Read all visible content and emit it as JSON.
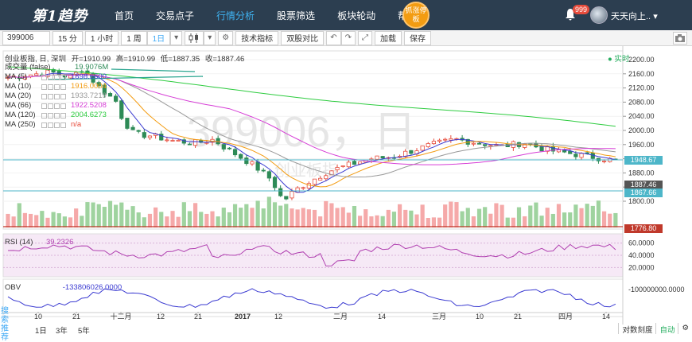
{
  "nav": {
    "logo": "第1趋势",
    "items": [
      "首页",
      "交易点子",
      "行情分析",
      "股票筛选",
      "板块轮动",
      "帮助"
    ],
    "promo": "抓涨停板",
    "notifications": "999",
    "user": "天天向上.."
  },
  "toolbar": {
    "code": "399006",
    "periods": [
      "15 分",
      "1 小时",
      "1 周",
      "1日"
    ],
    "buttons": [
      "技术指标",
      "双股对比",
      "加载",
      "保存"
    ]
  },
  "chart": {
    "ohlc_prefix": "创业板指, 日, 深圳",
    "open_label": "开=",
    "open": "1910.99",
    "high_label": "高=",
    "high": "1910.99",
    "low_label": "低=",
    "low": "1887.35",
    "close_label": "收=",
    "close": "1887.46",
    "volume_label": "成交量 (false)",
    "volume_val": "19.9076M",
    "mas": [
      {
        "name": "MA (5)",
        "value": "1898.6600",
        "color": "#3b3bd1"
      },
      {
        "name": "MA (10)",
        "value": "1916.0004",
        "color": "#f39c12"
      },
      {
        "name": "MA (20)",
        "value": "1933.7219",
        "color": "#999999"
      },
      {
        "name": "MA (66)",
        "value": "1922.5208",
        "color": "#d63ed6"
      },
      {
        "name": "MA (120)",
        "value": "2004.6273",
        "color": "#2ecc40"
      },
      {
        "name": "MA (250)",
        "value": "n/a",
        "color": "#e74c3c"
      }
    ],
    "realtime": "实时",
    "watermark": "399006，日",
    "watermark2": "创业板指",
    "price_axis": [
      "2200.00",
      "2160.00",
      "2120.00",
      "2080.00",
      "2040.00",
      "2000.00",
      "1960.00",
      "1920.00",
      "1880.00",
      "1840.00",
      "1800.00"
    ],
    "price_tags": [
      {
        "label": "1948.67",
        "color": "#4db6c9"
      },
      {
        "label": "1887.46",
        "color": "#555555"
      },
      {
        "label": "1867.66",
        "color": "#4db6c9"
      },
      {
        "label": "1776.80",
        "color": "#c0392b"
      }
    ],
    "rsi_label": "RSI (14)",
    "rsi_val": "39.2326",
    "rsi_axis": [
      "60.0000",
      "40.0000",
      "20.0000"
    ],
    "obv_label": "OBV",
    "obv_val": "-133806026.0000",
    "obv_axis": "-100000000.0000",
    "x_labels": [
      "10",
      "21",
      "十二月",
      "12",
      "21",
      "2017",
      "12",
      "二月",
      "14",
      "三月",
      "10",
      "21",
      "四月",
      "14"
    ],
    "ranges": [
      "1日",
      "3年",
      "5年"
    ],
    "side_tab": "搜索推荐",
    "bottom_right": [
      "对数刻度",
      "自动"
    ],
    "colors": {
      "up": "#e74c3c",
      "down": "#2e8b57",
      "vol_up": "#f5a9a9",
      "vol_down": "#9fd39f"
    }
  }
}
